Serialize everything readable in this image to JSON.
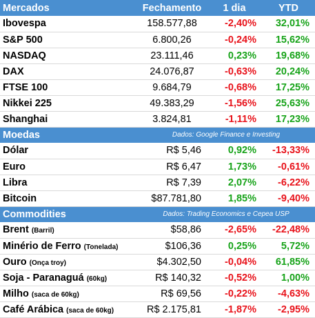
{
  "colors": {
    "header_bg": "#4a8fd0",
    "positive": "#17a319",
    "negative": "#e8121a"
  },
  "mercados": {
    "title": "Mercados",
    "col_close": "Fechamento",
    "col_day": "1 dia",
    "col_ytd": "YTD",
    "rows": [
      {
        "name": "Ibovespa",
        "close": "158.577,88",
        "day": "-2,40%",
        "ytd": "32,01%"
      },
      {
        "name": "S&P 500",
        "close": "6.800,26",
        "day": "-0,24%",
        "ytd": "15,62%"
      },
      {
        "name": "NASDAQ",
        "close": "23.111,46",
        "day": "0,23%",
        "ytd": "19,68%"
      },
      {
        "name": "DAX",
        "close": "24.076,87",
        "day": "-0,63%",
        "ytd": "20,24%"
      },
      {
        "name": "FTSE 100",
        "close": "9.684,79",
        "day": "-0,68%",
        "ytd": "17,25%"
      },
      {
        "name": "Nikkei 225",
        "close": "49.383,29",
        "day": "-1,56%",
        "ytd": "25,63%"
      },
      {
        "name": "Shanghai",
        "close": "3.824,81",
        "day": "-1,11%",
        "ytd": "17,23%"
      }
    ]
  },
  "moedas": {
    "title": "Moedas",
    "source": "Dados: Google Finance e Investing",
    "rows": [
      {
        "name": "Dólar",
        "close": "R$ 5,46",
        "day": "0,92%",
        "ytd": "-13,33%"
      },
      {
        "name": "Euro",
        "close": "R$ 6,47",
        "day": "1,73%",
        "ytd": "-0,61%"
      },
      {
        "name": "Libra",
        "close": "R$ 7,39",
        "day": "2,07%",
        "ytd": "-6,22%"
      },
      {
        "name": "Bitcoin",
        "close": "$87.781,80",
        "day": "1,85%",
        "ytd": "-9,40%"
      }
    ]
  },
  "commodities": {
    "title": "Commodities",
    "source": "Dados: Trading Economics e Cepea USP",
    "rows": [
      {
        "name": "Brent",
        "unit": "(Barril)",
        "close": "$58,86",
        "day": "-2,65%",
        "ytd": "-22,48%"
      },
      {
        "name": "Minério de Ferro",
        "unit": "(Tonelada)",
        "close": "$106,36",
        "day": "0,25%",
        "ytd": "5,72%"
      },
      {
        "name": "Ouro",
        "unit": "(Onça troy)",
        "close": "$4.302,50",
        "day": "-0,04%",
        "ytd": "61,85%"
      },
      {
        "name": "Soja - Paranaguá",
        "unit": "(60kg)",
        "close": "R$ 140,32",
        "day": "-0,52%",
        "ytd": "1,00%"
      },
      {
        "name": "Milho",
        "unit": "(saca de 60kg)",
        "close": "R$ 69,56",
        "day": "-0,22%",
        "ytd": "-4,63%"
      },
      {
        "name": "Café Arábica",
        "unit": "(saca de 60kg)",
        "close": "R$ 2.175,81",
        "day": "-1,87%",
        "ytd": "-2,95%"
      }
    ]
  }
}
